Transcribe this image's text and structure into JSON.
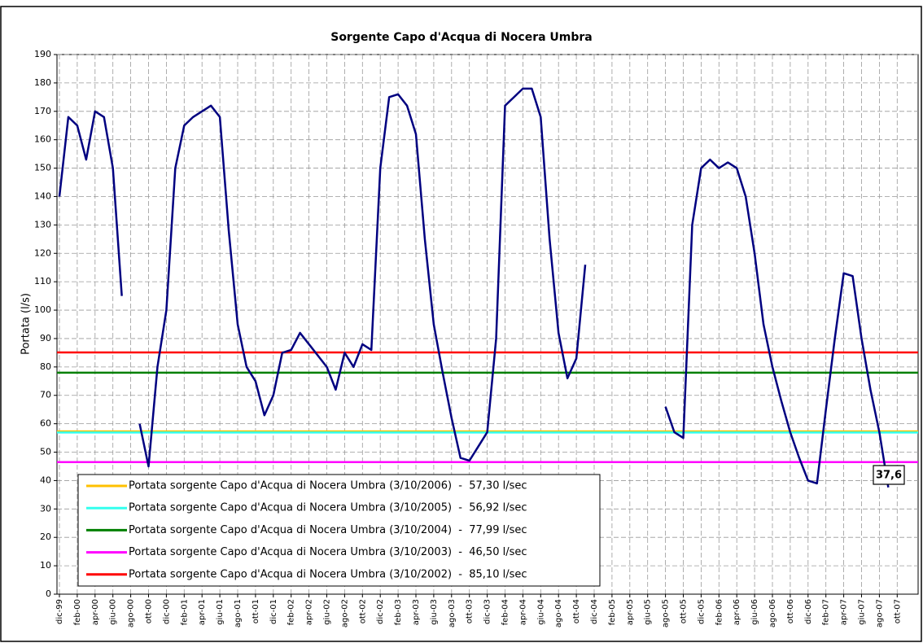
{
  "chart_data": {
    "type": "line",
    "title": "Sorgente Capo d'Acqua di Nocera Umbra",
    "y_label": "Portata (l/s)",
    "annotation": "37,6",
    "ylim": [
      0,
      190
    ],
    "yticks": [
      0,
      10,
      20,
      30,
      40,
      50,
      60,
      70,
      80,
      90,
      100,
      110,
      120,
      130,
      140,
      150,
      160,
      170,
      180,
      190
    ],
    "grid": true,
    "categories": [
      "dic-99",
      null,
      "feb-00",
      null,
      "apr-00",
      null,
      "giu-00",
      null,
      "ago-00",
      null,
      "ott-00",
      null,
      "dic-00",
      null,
      "feb-01",
      null,
      "apr-01",
      null,
      "giu-01",
      null,
      "ago-01",
      null,
      "ott-01",
      null,
      "dic-01",
      null,
      "feb-02",
      null,
      "apr-02",
      null,
      "giu-02",
      null,
      "ago-02",
      null,
      "ott-02",
      null,
      "dic-02",
      null,
      "feb-03",
      null,
      "apr-03",
      null,
      "giu-03",
      null,
      "ago-03",
      null,
      "ott-03",
      null,
      "dic-03",
      null,
      "feb-04",
      null,
      "apr-04",
      null,
      "giu-04",
      null,
      "ago-04",
      null,
      "ott-04",
      null,
      "dic-04",
      null,
      "feb-05",
      null,
      "apr-05",
      null,
      "giu-05",
      null,
      "ago-05",
      null,
      "ott-05",
      null,
      "dic-05",
      null,
      "feb-06",
      null,
      "apr-06",
      null,
      "giu-06",
      null,
      "ago-06",
      null,
      "ott-06",
      null,
      "dic-06",
      null,
      "feb-07",
      null,
      "apr-07",
      null,
      "giu-07",
      null,
      "ago-07",
      null,
      "ott-07"
    ],
    "series": [
      {
        "color": "#000080",
        "values": [
          140,
          168,
          165,
          153,
          170,
          168,
          150,
          105,
          null,
          60,
          45,
          80,
          100,
          150,
          165,
          168,
          170,
          172,
          168,
          128,
          95,
          80,
          75,
          63,
          70,
          85,
          86,
          92,
          88,
          84,
          80,
          72,
          85,
          80,
          88,
          86,
          150,
          175,
          176,
          172,
          162,
          125,
          95,
          78,
          62,
          48,
          47,
          52,
          57,
          90,
          172,
          175,
          178,
          178,
          168,
          125,
          92,
          76,
          83,
          116,
          null,
          null,
          null,
          null,
          null,
          null,
          null,
          null,
          66,
          57,
          55,
          130,
          150,
          153,
          150,
          152,
          150,
          140,
          120,
          95,
          80,
          68,
          57,
          48,
          40,
          39,
          65,
          90,
          113,
          112,
          90,
          72,
          57,
          37.6,
          null
        ]
      }
    ],
    "reference_lines": [
      {
        "name": "Portata sorgente Capo d'Acqua di Nocera Umbra (3/10/2006)  -  57,30 l/sec",
        "color": "#ffc000",
        "value": 57.3
      },
      {
        "name": "Portata sorgente Capo d'Acqua di Nocera Umbra (3/10/2005)  -  56,92 l/sec",
        "color": "#33ffee",
        "value": 56.92
      },
      {
        "name": "Portata sorgente Capo d'Acqua di Nocera Umbra (3/10/2004)  -  77,99 l/sec",
        "color": "#008000",
        "value": 77.99
      },
      {
        "name": "Portata sorgente Capo d'Acqua di Nocera Umbra (3/10/2003)  -  46,50 l/sec",
        "color": "#ff00ff",
        "value": 46.5
      },
      {
        "name": "Portata sorgente Capo d'Acqua di Nocera Umbra (3/10/2002)  -  85,10 l/sec",
        "color": "#ff0000",
        "value": 85.1
      }
    ]
  }
}
